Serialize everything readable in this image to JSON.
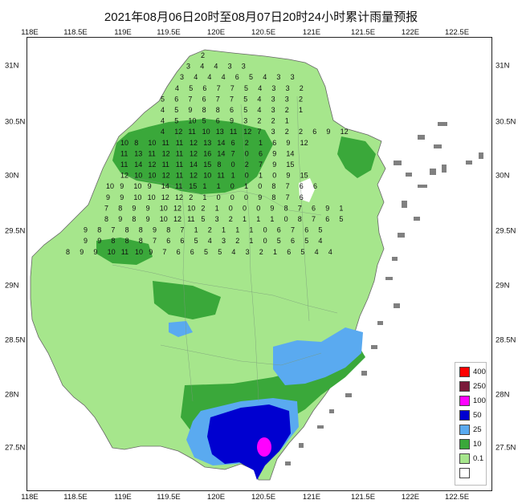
{
  "title": "2021年08月06日20时至08月07日20时24小时累计雨量预报",
  "axes": {
    "lon_ticks": [
      "118E",
      "118.5E",
      "119E",
      "119.5E",
      "120E",
      "120.5E",
      "121E",
      "121.5E",
      "122E",
      "122.5E"
    ],
    "lat_ticks": [
      "31N",
      "30.5N",
      "30N",
      "29.5N",
      "29N",
      "28.5N",
      "28N",
      "27.5N"
    ]
  },
  "legend": {
    "items": [
      {
        "label": "400",
        "color": "#ff0000"
      },
      {
        "label": "250",
        "color": "#7a1a3a"
      },
      {
        "label": "100",
        "color": "#ff00ff"
      },
      {
        "label": "50",
        "color": "#0000d0"
      },
      {
        "label": "25",
        "color": "#5aaaf0"
      },
      {
        "label": "10",
        "color": "#3aa83a"
      },
      {
        "label": "0.1",
        "color": "#a6e68c"
      },
      {
        "label": "",
        "color": "#ffffff"
      }
    ]
  },
  "colors": {
    "light_green": "#a6e68c",
    "green": "#3aa83a",
    "blue_light": "#5aaaf0",
    "blue": "#0000d0",
    "magenta": "#ff00ff",
    "island_gray": "#808080"
  },
  "grid_values": [
    {
      "row": "31.1",
      "vals": [
        "2"
      ]
    },
    {
      "row": "31.0",
      "vals": [
        "3",
        "4",
        "4",
        "3",
        "3"
      ]
    },
    {
      "row": "30.9",
      "vals": [
        "3",
        "4",
        "4",
        "4",
        "6",
        "5",
        "4",
        "3",
        "3"
      ]
    },
    {
      "row": "30.8",
      "vals": [
        "4",
        "5",
        "6",
        "7",
        "7",
        "5",
        "4",
        "3",
        "3",
        "2"
      ]
    },
    {
      "row": "30.7",
      "vals": [
        "5",
        "6",
        "7",
        "6",
        "7",
        "7",
        "5",
        "4",
        "3",
        "3",
        "2"
      ]
    },
    {
      "row": "30.6",
      "vals": [
        "4",
        "5",
        "9",
        "8",
        "8",
        "6",
        "5",
        "4",
        "3",
        "2",
        "1"
      ]
    },
    {
      "row": "30.5",
      "vals": [
        "4",
        "5",
        "10",
        "5",
        "6",
        "9",
        "3",
        "2",
        "2",
        "1"
      ]
    },
    {
      "row": "30.4",
      "vals": [
        "4",
        "12",
        "11",
        "10",
        "13",
        "11",
        "12",
        "7",
        "3",
        "2",
        "2",
        "6",
        "9",
        "12"
      ]
    },
    {
      "row": "30.3",
      "vals": [
        "10",
        "8",
        "10",
        "11",
        "11",
        "12",
        "13",
        "14",
        "6",
        "2",
        "1",
        "6",
        "9",
        "12"
      ]
    },
    {
      "row": "30.2",
      "vals": [
        "11",
        "13",
        "11",
        "12",
        "11",
        "12",
        "16",
        "14",
        "7",
        "0",
        "6",
        "9",
        "14"
      ]
    },
    {
      "row": "30.1",
      "vals": [
        "11",
        "14",
        "12",
        "11",
        "11",
        "14",
        "15",
        "8",
        "0",
        "2",
        "7",
        "9",
        "15"
      ]
    },
    {
      "row": "30.0",
      "vals": [
        "12",
        "10",
        "10",
        "12",
        "11",
        "12",
        "10",
        "11",
        "1",
        "0",
        "1",
        "0",
        "9",
        "15"
      ]
    },
    {
      "row": "29.9",
      "vals": [
        "10",
        "9",
        "10",
        "9",
        "14",
        "11",
        "15",
        "1",
        "1",
        "0",
        "1",
        "0",
        "8",
        "7",
        "6",
        "6"
      ]
    },
    {
      "row": "29.8",
      "vals": [
        "9",
        "9",
        "10",
        "10",
        "12",
        "12",
        "2",
        "1",
        "0",
        "0",
        "0",
        "9",
        "8",
        "7",
        "6"
      ]
    },
    {
      "row": "29.7",
      "vals": [
        "7",
        "8",
        "9",
        "9",
        "10",
        "12",
        "10",
        "2",
        "1",
        "0",
        "0",
        "0",
        "9",
        "8",
        "7",
        "6",
        "9",
        "1"
      ]
    },
    {
      "row": "29.6",
      "vals": [
        "8",
        "9",
        "8",
        "9",
        "10",
        "12",
        "11",
        "5",
        "3",
        "2",
        "1",
        "1",
        "1",
        "0",
        "8",
        "7",
        "6",
        "5"
      ]
    },
    {
      "row": "29.5",
      "vals": [
        "9",
        "8",
        "7",
        "8",
        "8",
        "9",
        "8",
        "7",
        "1",
        "2",
        "1",
        "1",
        "1",
        "0",
        "6",
        "7",
        "6",
        "5"
      ]
    },
    {
      "row": "29.4",
      "vals": [
        "9",
        "9",
        "8",
        "8",
        "8",
        "7",
        "6",
        "6",
        "5",
        "4",
        "3",
        "2",
        "1",
        "0",
        "5",
        "6",
        "5",
        "4"
      ]
    },
    {
      "row": "29.3",
      "vals": [
        "8",
        "9",
        "9",
        "10",
        "11",
        "10",
        "9",
        "7",
        "6",
        "6",
        "5",
        "5",
        "4",
        "3",
        "2",
        "1",
        "6",
        "5",
        "4",
        "4"
      ]
    }
  ]
}
